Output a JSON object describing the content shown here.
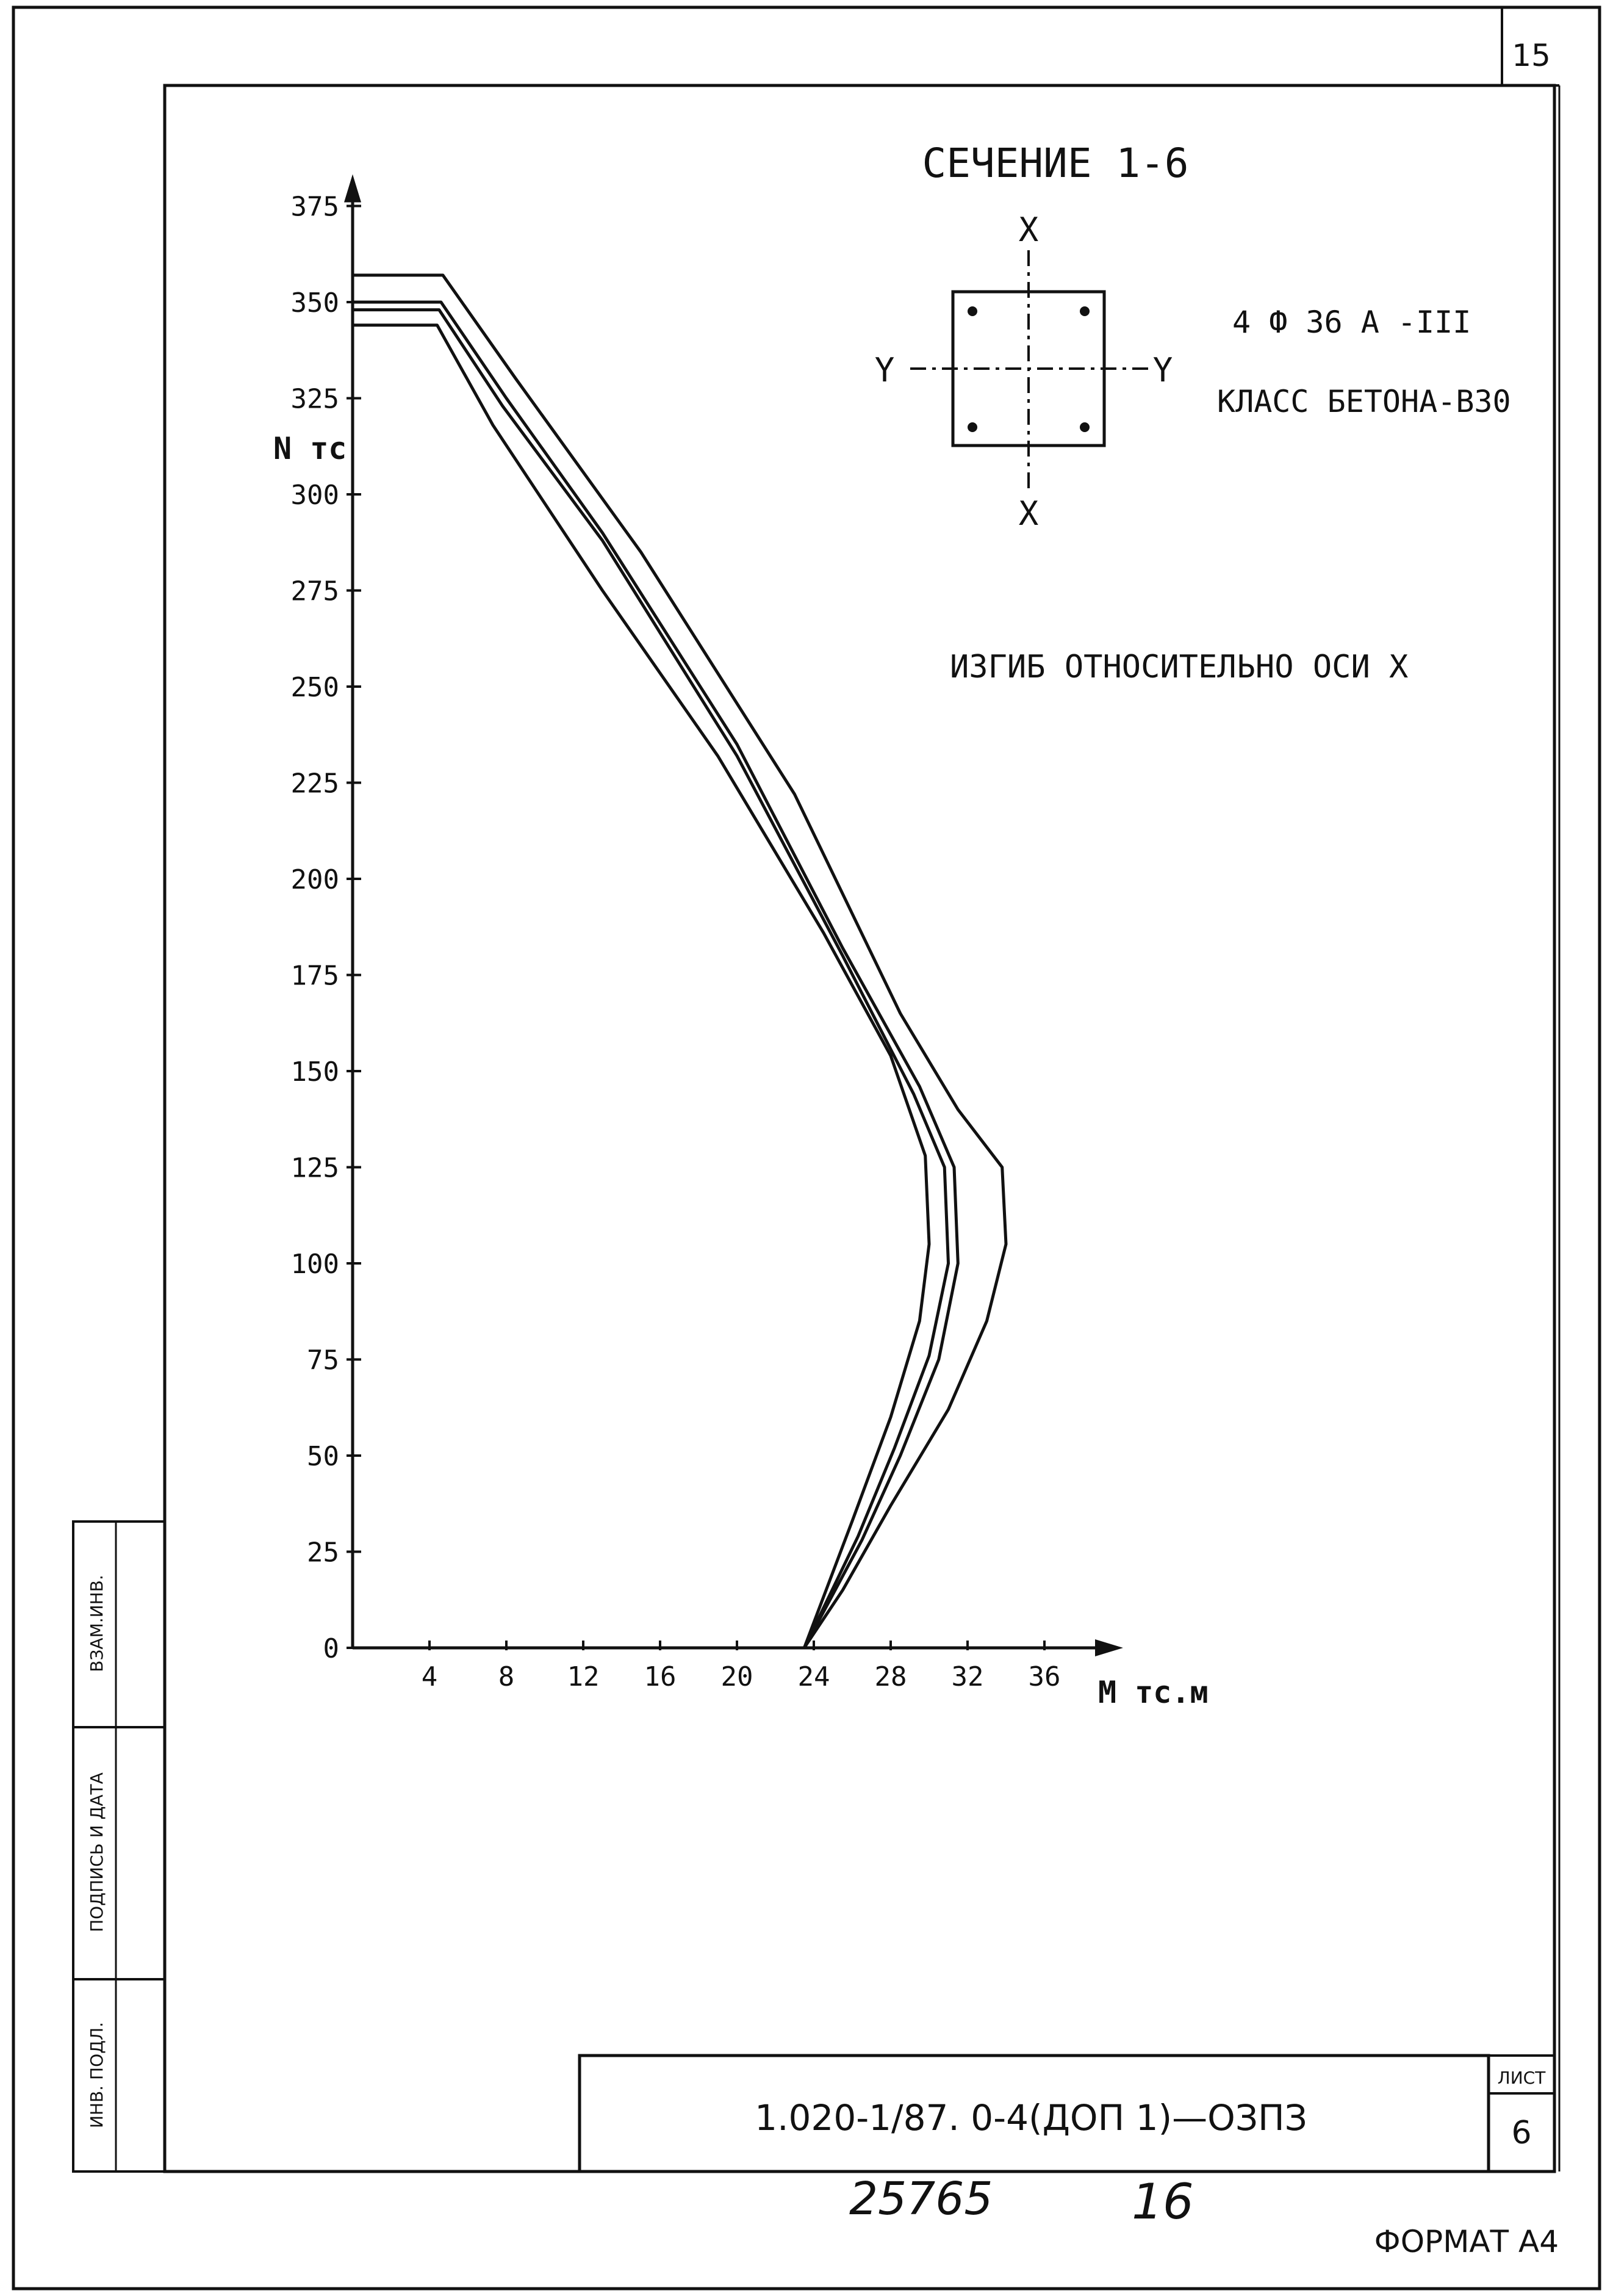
{
  "page_number": "15",
  "section_title": "СЕЧЕНИЕ 1-6",
  "section_diagram": {
    "axis_x_top": "X",
    "axis_x_bottom": "X",
    "axis_y_left": "Y",
    "axis_y_right": "Y"
  },
  "reinforcement": "4 Ф 36 А -III",
  "concrete_class": "КЛАСС БЕТОНА-В30",
  "bending_note": "ИЗГИБ ОТНОСИТЕЛЬНО ОСИ Х",
  "chart_data": {
    "type": "line",
    "xlabel": "М тс.м",
    "ylabel": "N тс",
    "xlim": [
      0,
      38
    ],
    "ylim": [
      0,
      375
    ],
    "x_ticks": [
      4,
      8,
      12,
      16,
      20,
      24,
      28,
      32,
      36
    ],
    "x_tick_labels": [
      "4",
      "8",
      "12",
      "16",
      "20",
      "24",
      "28",
      "32",
      "36"
    ],
    "y_ticks": [
      0,
      25,
      50,
      75,
      100,
      125,
      150,
      175,
      200,
      225,
      250,
      275,
      300,
      325,
      350,
      375
    ],
    "y_tick_labels": [
      "0",
      "25",
      "50",
      "75",
      "100",
      "125",
      "150",
      "175",
      "200",
      "225",
      "250",
      "275",
      "300",
      "325",
      "350",
      "375"
    ],
    "series": [
      {
        "points": [
          [
            0,
            357
          ],
          [
            4.7,
            357
          ],
          [
            8.5,
            330
          ],
          [
            15,
            285
          ],
          [
            23,
            222
          ],
          [
            28.5,
            165
          ],
          [
            31.5,
            140
          ],
          [
            33.8,
            125
          ],
          [
            34,
            105
          ],
          [
            33,
            85
          ],
          [
            31,
            62
          ],
          [
            28,
            37
          ],
          [
            25.5,
            15
          ],
          [
            23.5,
            0
          ]
        ]
      },
      {
        "points": [
          [
            0,
            350
          ],
          [
            4.6,
            350
          ],
          [
            8,
            325
          ],
          [
            13,
            290
          ],
          [
            20,
            235
          ],
          [
            25.5,
            182
          ],
          [
            29.5,
            146
          ],
          [
            31.3,
            125
          ],
          [
            31.5,
            100
          ],
          [
            30.5,
            75
          ],
          [
            28.5,
            50
          ],
          [
            26.5,
            28
          ],
          [
            23.5,
            0
          ]
        ]
      },
      {
        "points": [
          [
            0,
            348
          ],
          [
            4.5,
            348
          ],
          [
            7.8,
            323
          ],
          [
            13,
            288
          ],
          [
            20,
            232
          ],
          [
            25.5,
            180
          ],
          [
            29.2,
            144
          ],
          [
            30.8,
            125
          ],
          [
            31,
            100
          ],
          [
            30,
            76
          ],
          [
            28.2,
            52
          ],
          [
            26.3,
            29
          ],
          [
            23.5,
            0
          ]
        ]
      },
      {
        "points": [
          [
            0,
            344
          ],
          [
            4.4,
            344
          ],
          [
            7.3,
            318
          ],
          [
            13,
            275
          ],
          [
            19,
            232
          ],
          [
            24.5,
            186
          ],
          [
            28,
            154
          ],
          [
            29.8,
            128
          ],
          [
            30,
            105
          ],
          [
            29.5,
            85
          ],
          [
            28,
            60
          ],
          [
            26,
            33
          ],
          [
            23.5,
            0
          ]
        ]
      }
    ]
  },
  "stamp_labels": {
    "inv_podl": "ИНВ. ПОДЛ.",
    "podpis_data": "ПОДПИСЬ И ДАТА",
    "vzam_inv": "ВЗАМ.ИНВ."
  },
  "title_block": {
    "document_code": "1.020-1/87. 0-4(ДОП 1)—ОЗПЗ",
    "sheet_label": "ЛИСТ",
    "sheet_number": "6"
  },
  "handwritten": {
    "number_1": "25765",
    "number_2": "16"
  },
  "format": "ФОРМАТ А4"
}
